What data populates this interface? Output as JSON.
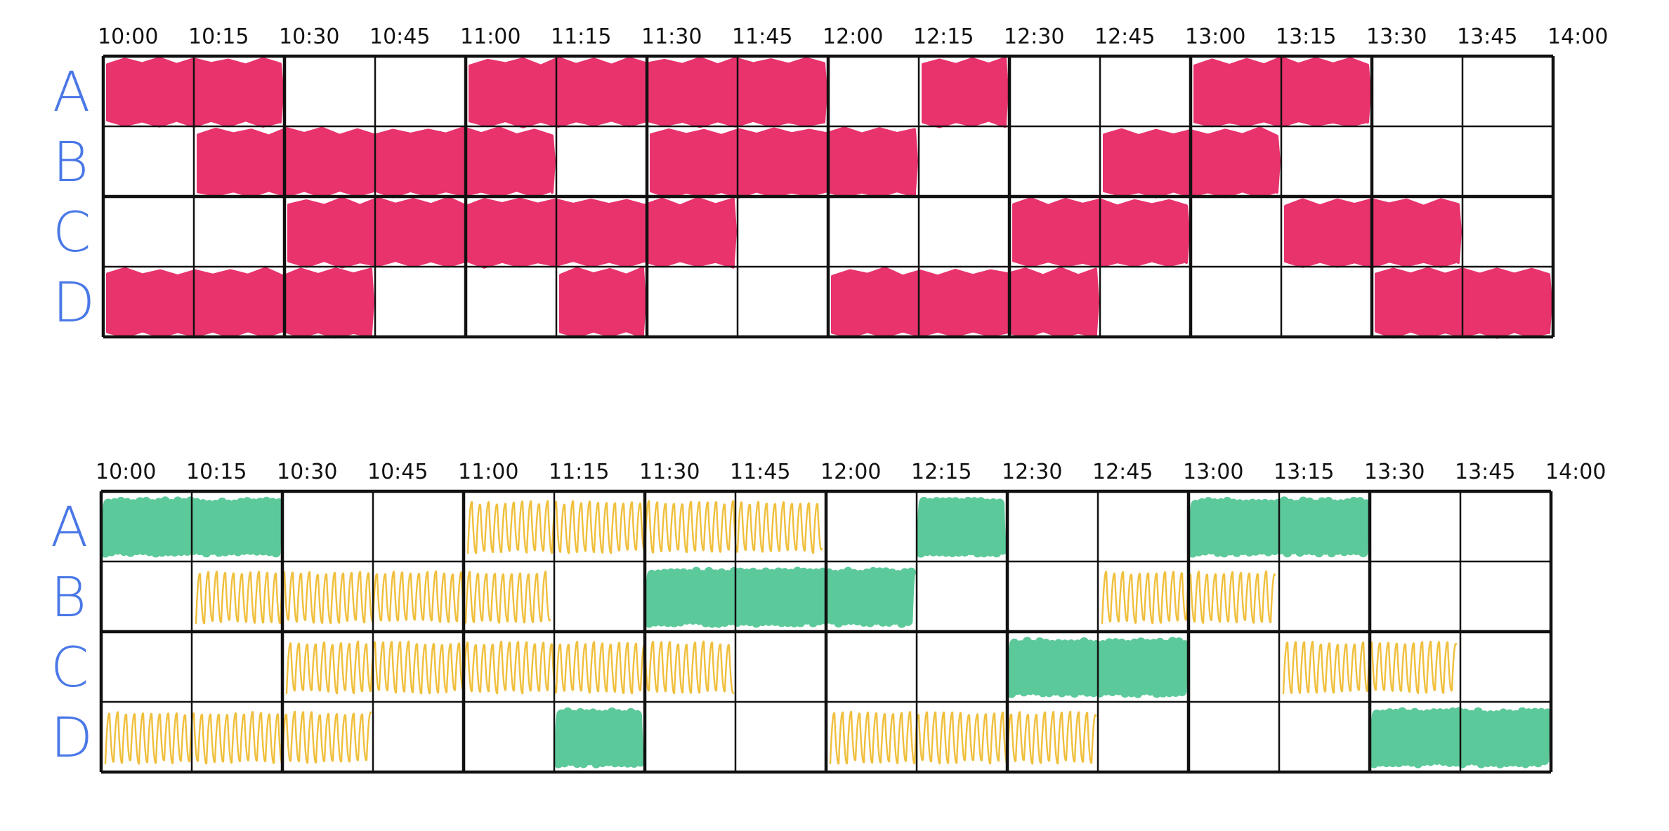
{
  "times": [
    "10:00",
    "10:15",
    "10:30",
    "10:45",
    "11:00",
    "11:15",
    "11:30",
    "11:45",
    "12:00",
    "12:15",
    "12:30",
    "12:45",
    "13:00",
    "13:15",
    "13:30",
    "13:45",
    "14:00"
  ],
  "rows": [
    "A",
    "B",
    "C",
    "D"
  ],
  "colors": {
    "row_label": "#4a78e6",
    "booked_red": "#e8336c",
    "green": "#5cc99a",
    "yellow": "#f0bf3c",
    "grid": "#111111"
  },
  "top_schedule": {
    "fill_style": "solid",
    "blocks": [
      {
        "row": "A",
        "start": "10:00",
        "end": "10:30",
        "color": "booked_red"
      },
      {
        "row": "A",
        "start": "11:00",
        "end": "12:00",
        "color": "booked_red"
      },
      {
        "row": "A",
        "start": "12:15",
        "end": "12:30",
        "color": "booked_red"
      },
      {
        "row": "A",
        "start": "13:00",
        "end": "13:30",
        "color": "booked_red"
      },
      {
        "row": "B",
        "start": "10:15",
        "end": "11:15",
        "color": "booked_red"
      },
      {
        "row": "B",
        "start": "11:30",
        "end": "12:15",
        "color": "booked_red"
      },
      {
        "row": "B",
        "start": "12:45",
        "end": "13:15",
        "color": "booked_red"
      },
      {
        "row": "C",
        "start": "10:30",
        "end": "11:45",
        "color": "booked_red"
      },
      {
        "row": "C",
        "start": "12:30",
        "end": "13:00",
        "color": "booked_red"
      },
      {
        "row": "C",
        "start": "13:15",
        "end": "13:45",
        "color": "booked_red"
      },
      {
        "row": "D",
        "start": "10:00",
        "end": "10:45",
        "color": "booked_red"
      },
      {
        "row": "D",
        "start": "11:15",
        "end": "11:30",
        "color": "booked_red"
      },
      {
        "row": "D",
        "start": "12:00",
        "end": "12:45",
        "color": "booked_red"
      },
      {
        "row": "D",
        "start": "13:30",
        "end": "14:00",
        "color": "booked_red"
      }
    ]
  },
  "bottom_schedule": {
    "fill_style": "scribble",
    "blocks": [
      {
        "row": "A",
        "start": "10:00",
        "end": "10:30",
        "color": "green"
      },
      {
        "row": "A",
        "start": "11:00",
        "end": "12:00",
        "color": "yellow"
      },
      {
        "row": "A",
        "start": "12:15",
        "end": "12:30",
        "color": "green"
      },
      {
        "row": "A",
        "start": "13:00",
        "end": "13:30",
        "color": "green"
      },
      {
        "row": "B",
        "start": "10:15",
        "end": "11:15",
        "color": "yellow"
      },
      {
        "row": "B",
        "start": "11:30",
        "end": "12:15",
        "color": "green"
      },
      {
        "row": "B",
        "start": "12:45",
        "end": "13:15",
        "color": "yellow"
      },
      {
        "row": "C",
        "start": "10:30",
        "end": "11:45",
        "color": "yellow"
      },
      {
        "row": "C",
        "start": "12:30",
        "end": "13:00",
        "color": "green"
      },
      {
        "row": "C",
        "start": "13:15",
        "end": "13:45",
        "color": "yellow"
      },
      {
        "row": "D",
        "start": "10:00",
        "end": "10:45",
        "color": "yellow"
      },
      {
        "row": "D",
        "start": "11:15",
        "end": "11:30",
        "color": "green"
      },
      {
        "row": "D",
        "start": "12:00",
        "end": "12:45",
        "color": "yellow"
      },
      {
        "row": "D",
        "start": "13:30",
        "end": "14:00",
        "color": "green"
      }
    ]
  }
}
